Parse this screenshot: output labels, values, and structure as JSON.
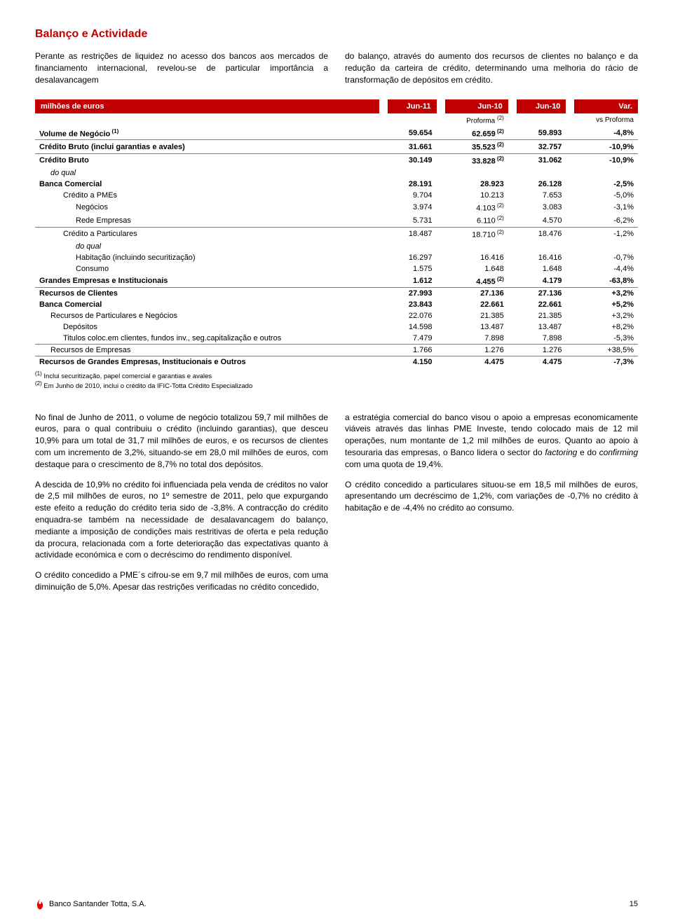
{
  "section_title": "Balanço e Actividade",
  "intro_left": "Perante as restrições de liquidez no acesso dos bancos aos mercados de financiamento internacional, revelou-se de particular importância a desalavancagem",
  "intro_right": "do balanço, através do aumento dos recursos de clientes no balanço e da redução da carteira de crédito, determinando uma melhoria do rácio de transformação de depósitos em crédito.",
  "table": {
    "headers": [
      "milhões de euros",
      "Jun-11",
      "Jun-10",
      "Jun-10",
      "Var."
    ],
    "sub_left": "",
    "sub_proforma": "Proforma",
    "sub_proforma_sup": "(2)",
    "sub_vs": "vs Proforma",
    "rows": [
      {
        "label": "Volume de Negócio",
        "sup": "(1)",
        "c1": "59.654",
        "c2": "62.659",
        "c2s": "(2)",
        "c3": "59.893",
        "c4": "-4,8%",
        "bold": true,
        "sep": false,
        "indent": 0
      },
      {
        "label": "Crédito Bruto (inclui garantias e avales)",
        "c1": "31.661",
        "c2": "35.523",
        "c2s": "(2)",
        "c3": "32.757",
        "c4": "-10,9%",
        "bold": true,
        "sep": true,
        "indent": 0
      },
      {
        "label": "Crédito Bruto",
        "c1": "30.149",
        "c2": "33.828",
        "c2s": "(2)",
        "c3": "31.062",
        "c4": "-10,9%",
        "bold": true,
        "sep": true,
        "indent": 0
      },
      {
        "label": "do qual",
        "italic": true,
        "c1": "",
        "c2": "",
        "c3": "",
        "c4": "",
        "indent": 1
      },
      {
        "label": "Banca Comercial",
        "c1": "28.191",
        "c2": "28.923",
        "c3": "26.128",
        "c4": "-2,5%",
        "bold": true,
        "indent": 0
      },
      {
        "label": "Crédito a PMEs",
        "c1": "9.704",
        "c2": "10.213",
        "c3": "7.653",
        "c4": "-5,0%",
        "indent": 2
      },
      {
        "label": "Negócios",
        "c1": "3.974",
        "c2": "4.103",
        "c2s": "(2)",
        "c3": "3.083",
        "c4": "-3,1%",
        "indent": 3
      },
      {
        "label": "Rede Empresas",
        "c1": "5.731",
        "c2": "6.110",
        "c2s": "(2)",
        "c3": "4.570",
        "c4": "-6,2%",
        "indent": 3
      },
      {
        "label": "Crédito a Particulares",
        "c1": "18.487",
        "c2": "18.710",
        "c2s": "(2)",
        "c3": "18.476",
        "c4": "-1,2%",
        "indent": 2,
        "sep": true
      },
      {
        "label": "do qual",
        "italic": true,
        "c1": "",
        "c2": "",
        "c3": "",
        "c4": "",
        "indent": 3
      },
      {
        "label": "Habitação (incluindo securitização)",
        "c1": "16.297",
        "c2": "16.416",
        "c3": "16.416",
        "c4": "-0,7%",
        "indent": 3
      },
      {
        "label": "Consumo",
        "c1": "1.575",
        "c2": "1.648",
        "c3": "1.648",
        "c4": "-4,4%",
        "indent": 3
      },
      {
        "label": "Grandes Empresas e Institucionais",
        "c1": "1.612",
        "c2": "4.455",
        "c2s": "(2)",
        "c3": "4.179",
        "c4": "-63,8%",
        "bold": true,
        "indent": 0
      },
      {
        "label": "Recursos de Clientes",
        "c1": "27.993",
        "c2": "27.136",
        "c3": "27.136",
        "c4": "+3,2%",
        "bold": true,
        "sep": true,
        "indent": 0
      },
      {
        "label": "Banca Comercial",
        "c1": "23.843",
        "c2": "22.661",
        "c3": "22.661",
        "c4": "+5,2%",
        "bold": true,
        "indent": 0
      },
      {
        "label": "Recursos de Particulares e Negócios",
        "c1": "22.076",
        "c2": "21.385",
        "c3": "21.385",
        "c4": "+3,2%",
        "indent": 1
      },
      {
        "label": "Depósitos",
        "c1": "14.598",
        "c2": "13.487",
        "c3": "13.487",
        "c4": "+8,2%",
        "indent": 2
      },
      {
        "label": "Titulos coloc.em clientes, fundos inv., seg.capitalização e outros",
        "c1": "7.479",
        "c2": "7.898",
        "c3": "7.898",
        "c4": "-5,3%",
        "indent": 2
      },
      {
        "label": "Recursos de Empresas",
        "c1": "1.766",
        "c2": "1.276",
        "c3": "1.276",
        "c4": "+38,5%",
        "indent": 1,
        "sep": true
      },
      {
        "label": "Recursos de Grandes Empresas, Institucionais e Outros",
        "c1": "4.150",
        "c2": "4.475",
        "c3": "4.475",
        "c4": "-7,3%",
        "bold": true,
        "sep": true,
        "indent": 0
      }
    ],
    "footnote1_sup": "(1)",
    "footnote1": "Inclui securitização, papel comercial e garantias e avales",
    "footnote2_sup": "(2)",
    "footnote2": "Em Junho de 2010, inclui o crédito da IFIC-Totta Crédito Especializado"
  },
  "body_left_p1": "No final de Junho de 2011, o volume de negócio totalizou 59,7 mil milhões de euros, para o qual contribuiu o crédito (incluindo garantias), que desceu 10,9% para um total de 31,7 mil milhões de euros, e os recursos de clientes com um incremento de 3,2%, situando-se em 28,0 mil milhões de euros, com destaque para o crescimento de 8,7% no total dos depósitos.",
  "body_left_p2": "A descida de 10,9% no crédito foi influenciada pela venda de créditos no valor de 2,5 mil milhões de euros, no 1º semestre de 2011, pelo que expurgando este efeito a redução do crédito teria sido de -3,8%. A contracção do crédito enquadra-se também na necessidade de desalavancagem do balanço, mediante a imposição de condições mais restritivas de oferta e pela redução da procura, relacionada com a forte deterioração das expectativas quanto à actividade económica e com o decréscimo do rendimento disponível.",
  "body_left_p3": "O crédito concedido a PME´s cifrou-se em 9,7 mil milhões de euros, com uma diminuição de 5,0%. Apesar das restrições verificadas no crédito concedido,",
  "body_right_p1_a": "a estratégia comercial do banco visou o apoio a empresas economicamente viáveis através das linhas PME Investe, tendo colocado mais de 12 mil operações, num montante de 1,2 mil milhões de euros. Quanto ao apoio à tesouraria das empresas, o Banco lidera o sector do ",
  "body_right_p1_i1": "factoring",
  "body_right_p1_b": " e do ",
  "body_right_p1_i2": "confirming",
  "body_right_p1_c": " com uma quota de 19,4%.",
  "body_right_p2": "O crédito concedido a particulares situou-se em 18,5 mil milhões de euros, apresentando um decréscimo de 1,2%, com variações de -0,7% no crédito à habitação e de -4,4% no crédito ao consumo.",
  "footer_bank": "Banco Santander Totta, S.A.",
  "footer_page": "15",
  "colors": {
    "accent": "#c00000",
    "text": "#000000",
    "rule": "#7f7f7f"
  }
}
